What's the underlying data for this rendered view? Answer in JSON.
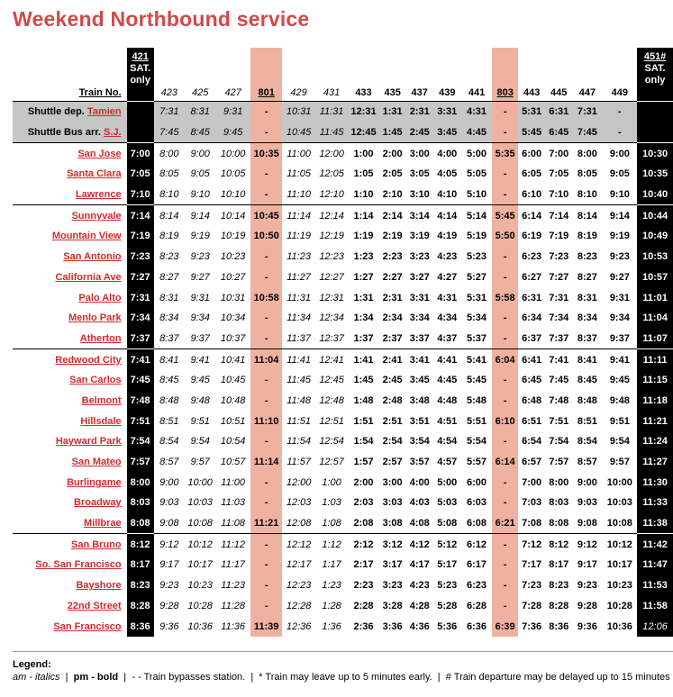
{
  "title": "Weekend Northbound service",
  "header": {
    "label": "Train No.",
    "trains": [
      {
        "no": "421",
        "sub": "SAT.",
        "sub2": "only",
        "kind": "black"
      },
      {
        "no": "423",
        "kind": "am"
      },
      {
        "no": "425",
        "kind": "am"
      },
      {
        "no": "427",
        "kind": "am"
      },
      {
        "no": "801",
        "kind": "salmon"
      },
      {
        "no": "429",
        "kind": "am"
      },
      {
        "no": "431",
        "kind": "am"
      },
      {
        "no": "433",
        "kind": "pm"
      },
      {
        "no": "435",
        "kind": "pm"
      },
      {
        "no": "437",
        "kind": "pm"
      },
      {
        "no": "439",
        "kind": "pm"
      },
      {
        "no": "441",
        "kind": "pm"
      },
      {
        "no": "803",
        "kind": "salmon"
      },
      {
        "no": "443",
        "kind": "pm"
      },
      {
        "no": "445",
        "kind": "pm"
      },
      {
        "no": "447",
        "kind": "pm"
      },
      {
        "no": "449",
        "kind": "pm"
      },
      {
        "no": "451#",
        "sub": "SAT.",
        "sub2": "only",
        "kind": "black"
      }
    ]
  },
  "shuttle_rows": [
    {
      "prefix": "Shuttle dep. ",
      "link": "Tamien",
      "times": [
        "",
        "7:31",
        "8:31",
        "9:31",
        "-",
        "10:31",
        "11:31",
        "12:31",
        "1:31",
        "2:31",
        "3:31",
        "4:31",
        "-",
        "5:31",
        "6:31",
        "7:31",
        "-",
        ""
      ]
    },
    {
      "prefix": "Shuttle Bus arr. ",
      "link": "S.J.",
      "times": [
        "",
        "7:45",
        "8:45",
        "9:45",
        "-",
        "10:45",
        "11:45",
        "12:45",
        "1:45",
        "2:45",
        "3:45",
        "4:45",
        "-",
        "5:45",
        "6:45",
        "7:45",
        "-",
        ""
      ]
    }
  ],
  "stations": [
    {
      "name": "San Jose",
      "times": [
        "7:00",
        "8:00",
        "9:00",
        "10:00",
        "10:35",
        "11:00",
        "12:00",
        "1:00",
        "2:00",
        "3:00",
        "4:00",
        "5:00",
        "5:35",
        "6:00",
        "7:00",
        "8:00",
        "9:00",
        "10:30"
      ]
    },
    {
      "name": "Santa Clara",
      "times": [
        "7:05",
        "8:05",
        "9:05",
        "10:05",
        "-",
        "11:05",
        "12:05",
        "1:05",
        "2:05",
        "3:05",
        "4:05",
        "5:05",
        "-",
        "6:05",
        "7:05",
        "8:05",
        "9:05",
        "10:35"
      ]
    },
    {
      "name": "Lawrence",
      "times": [
        "7:10",
        "8:10",
        "9:10",
        "10:10",
        "-",
        "11:10",
        "12:10",
        "1:10",
        "2:10",
        "3:10",
        "4:10",
        "5:10",
        "-",
        "6:10",
        "7:10",
        "8:10",
        "9:10",
        "10:40"
      ]
    },
    {
      "name": "Sunnyvale",
      "times": [
        "7:14",
        "8:14",
        "9:14",
        "10:14",
        "10:45",
        "11:14",
        "12:14",
        "1:14",
        "2:14",
        "3:14",
        "4:14",
        "5:14",
        "5:45",
        "6:14",
        "7:14",
        "8:14",
        "9:14",
        "10:44"
      ]
    },
    {
      "name": "Mountain View",
      "times": [
        "7:19",
        "8:19",
        "9:19",
        "10:19",
        "10:50",
        "11:19",
        "12:19",
        "1:19",
        "2:19",
        "3:19",
        "4:19",
        "5:19",
        "5:50",
        "6:19",
        "7:19",
        "8:19",
        "9:19",
        "10:49"
      ]
    },
    {
      "name": "San Antonio",
      "times": [
        "7:23",
        "8:23",
        "9:23",
        "10:23",
        "-",
        "11:23",
        "12:23",
        "1:23",
        "2:23",
        "3:23",
        "4:23",
        "5:23",
        "-",
        "6:23",
        "7:23",
        "8:23",
        "9:23",
        "10:53"
      ]
    },
    {
      "name": "California Ave",
      "times": [
        "7:27",
        "8:27",
        "9:27",
        "10:27",
        "-",
        "11:27",
        "12:27",
        "1:27",
        "2:27",
        "3:27",
        "4:27",
        "5:27",
        "-",
        "6:27",
        "7:27",
        "8:27",
        "9:27",
        "10:57"
      ]
    },
    {
      "name": "Palo Alto",
      "times": [
        "7:31",
        "8:31",
        "9:31",
        "10:31",
        "10:58",
        "11:31",
        "12:31",
        "1:31",
        "2:31",
        "3:31",
        "4:31",
        "5:31",
        "5:58",
        "6:31",
        "7:31",
        "8:31",
        "9:31",
        "11:01"
      ]
    },
    {
      "name": "Menlo Park",
      "times": [
        "7:34",
        "8:34",
        "9:34",
        "10:34",
        "-",
        "11:34",
        "12:34",
        "1:34",
        "2:34",
        "3:34",
        "4:34",
        "5:34",
        "-",
        "6:34",
        "7:34",
        "8:34",
        "9:34",
        "11:04"
      ]
    },
    {
      "name": "Atherton",
      "times": [
        "7:37",
        "8:37",
        "9:37",
        "10:37",
        "-",
        "11:37",
        "12:37",
        "1:37",
        "2:37",
        "3:37",
        "4:37",
        "5:37",
        "-",
        "6:37",
        "7:37",
        "8:37",
        "9:37",
        "11:07"
      ]
    },
    {
      "name": "Redwood City",
      "times": [
        "7:41",
        "8:41",
        "9:41",
        "10:41",
        "11:04",
        "11:41",
        "12:41",
        "1:41",
        "2:41",
        "3:41",
        "4:41",
        "5:41",
        "6:04",
        "6:41",
        "7:41",
        "8:41",
        "9:41",
        "11:11"
      ]
    },
    {
      "name": "San Carlos",
      "times": [
        "7:45",
        "8:45",
        "9:45",
        "10:45",
        "-",
        "11:45",
        "12:45",
        "1:45",
        "2:45",
        "3:45",
        "4:45",
        "5:45",
        "-",
        "6:45",
        "7:45",
        "8:45",
        "9:45",
        "11:15"
      ]
    },
    {
      "name": "Belmont",
      "times": [
        "7:48",
        "8:48",
        "9:48",
        "10:48",
        "-",
        "11:48",
        "12:48",
        "1:48",
        "2:48",
        "3:48",
        "4:48",
        "5:48",
        "-",
        "6:48",
        "7:48",
        "8:48",
        "9:48",
        "11:18"
      ]
    },
    {
      "name": "Hillsdale",
      "times": [
        "7:51",
        "8:51",
        "9:51",
        "10:51",
        "11:10",
        "11:51",
        "12:51",
        "1:51",
        "2:51",
        "3:51",
        "4:51",
        "5:51",
        "6:10",
        "6:51",
        "7:51",
        "8:51",
        "9:51",
        "11:21"
      ]
    },
    {
      "name": "Hayward Park",
      "times": [
        "7:54",
        "8:54",
        "9:54",
        "10:54",
        "-",
        "11:54",
        "12:54",
        "1:54",
        "2:54",
        "3:54",
        "4:54",
        "5:54",
        "-",
        "6:54",
        "7:54",
        "8:54",
        "9:54",
        "11:24"
      ]
    },
    {
      "name": "San Mateo",
      "times": [
        "7:57",
        "8:57",
        "9:57",
        "10:57",
        "11:14",
        "11:57",
        "12:57",
        "1:57",
        "2:57",
        "3:57",
        "4:57",
        "5:57",
        "6:14",
        "6:57",
        "7:57",
        "8:57",
        "9:57",
        "11:27"
      ]
    },
    {
      "name": "Burlingame",
      "times": [
        "8:00",
        "9:00",
        "10:00",
        "11:00",
        "-",
        "12:00",
        "1:00",
        "2:00",
        "3:00",
        "4:00",
        "5:00",
        "6:00",
        "-",
        "7:00",
        "8:00",
        "9:00",
        "10:00",
        "11:30"
      ]
    },
    {
      "name": "Broadway",
      "times": [
        "8:03",
        "9:03",
        "10:03",
        "11:03",
        "-",
        "12:03",
        "1:03",
        "2:03",
        "3:03",
        "4:03",
        "5:03",
        "6:03",
        "-",
        "7:03",
        "8:03",
        "9:03",
        "10:03",
        "11:33"
      ]
    },
    {
      "name": "Millbrae",
      "times": [
        "8:08",
        "9:08",
        "10:08",
        "11:08",
        "11:21",
        "12:08",
        "1:08",
        "2:08",
        "3:08",
        "4:08",
        "5:08",
        "6:08",
        "6:21",
        "7:08",
        "8:08",
        "9:08",
        "10:08",
        "11:38"
      ]
    },
    {
      "name": "San Bruno",
      "times": [
        "8:12",
        "9:12",
        "10:12",
        "11:12",
        "-",
        "12:12",
        "1:12",
        "2:12",
        "3:12",
        "4:12",
        "5:12",
        "6:12",
        "-",
        "7:12",
        "8:12",
        "9:12",
        "10:12",
        "11:42"
      ]
    },
    {
      "name": "So. San Francisco",
      "times": [
        "8:17",
        "9:17",
        "10:17",
        "11:17",
        "-",
        "12:17",
        "1:17",
        "2:17",
        "3:17",
        "4:17",
        "5:17",
        "6:17",
        "-",
        "7:17",
        "8:17",
        "9:17",
        "10:17",
        "11:47"
      ]
    },
    {
      "name": "Bayshore",
      "times": [
        "8:23",
        "9:23",
        "10:23",
        "11:23",
        "-",
        "12:23",
        "1:23",
        "2:23",
        "3:23",
        "4:23",
        "5:23",
        "6:23",
        "-",
        "7:23",
        "8:23",
        "9:23",
        "10:23",
        "11:53"
      ]
    },
    {
      "name": "22nd Street",
      "times": [
        "8:28",
        "9:28",
        "10:28",
        "11:28",
        "-",
        "12:28",
        "1:28",
        "2:28",
        "3:28",
        "4:28",
        "5:28",
        "6:28",
        "-",
        "7:28",
        "8:28",
        "9:28",
        "10:28",
        "11:58"
      ]
    },
    {
      "name": "San Francisco",
      "times": [
        "8:36",
        "9:36",
        "10:36",
        "11:36",
        "11:39",
        "12:36",
        "1:36",
        "2:36",
        "3:36",
        "4:36",
        "5:36",
        "6:36",
        "6:39",
        "7:36",
        "8:36",
        "9:36",
        "10:36",
        "12:06"
      ]
    }
  ],
  "legend": {
    "title": "Legend:",
    "am": "am - italics",
    "pm": "pm - bold",
    "bypass": "- - Train bypasses station.",
    "star": "* Train may leave up to 5 minutes early.",
    "hash": "# Train departure may be delayed up to 15  minutes"
  },
  "colors": {
    "title": "#d04a4a",
    "station_link": "#d42a2a",
    "salmon": "#f0b2a0",
    "shuttle_bg": "#c6c6c6",
    "black_col": "#000000"
  }
}
